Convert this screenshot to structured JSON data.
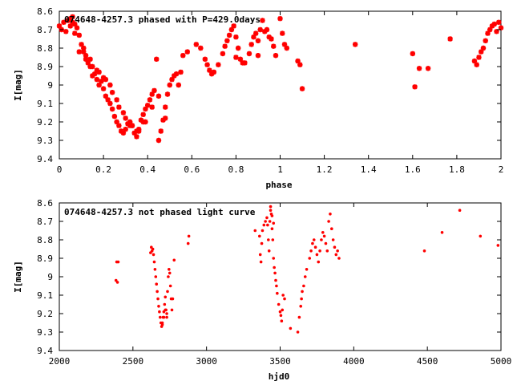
{
  "chart_data": [
    {
      "type": "scatter",
      "title": "074648-4257.3 phased with P=429.0days",
      "xlabel": "phase",
      "ylabel": "I[mag]",
      "xlim": [
        0,
        2
      ],
      "ylim": [
        8.6,
        9.4
      ],
      "y_inverted": true,
      "marker_color": "#ff0000",
      "marker": "star",
      "grid": false,
      "x_ticks": [
        "0",
        "0.2",
        "0.4",
        "0.6",
        "0.8",
        "1",
        "1.2",
        "1.4",
        "1.6",
        "1.8",
        "2"
      ],
      "y_ticks": [
        "8.6",
        "8.7",
        "8.8",
        "8.9",
        "9",
        "9.1",
        "9.2",
        "9.3",
        "9.4"
      ],
      "x": [
        0.0,
        0.01,
        0.02,
        0.03,
        0.04,
        0.05,
        0.06,
        0.07,
        0.08,
        0.09,
        0.1,
        0.11,
        0.12,
        0.13,
        0.14,
        0.15,
        0.16,
        0.17,
        0.18,
        0.19,
        0.2,
        0.21,
        0.22,
        0.23,
        0.24,
        0.25,
        0.26,
        0.27,
        0.28,
        0.29,
        0.3,
        0.31,
        0.32,
        0.33,
        0.34,
        0.35,
        0.36,
        0.37,
        0.38,
        0.39,
        0.4,
        0.41,
        0.42,
        0.43,
        0.44,
        0.45,
        0.46,
        0.47,
        0.48,
        0.49,
        0.5,
        0.51,
        0.52,
        0.53,
        0.54,
        0.55,
        0.56,
        0.58,
        0.62,
        0.64,
        0.66,
        0.67,
        0.68,
        0.69,
        0.7,
        0.72,
        0.74,
        0.75,
        0.76,
        0.77,
        0.78,
        0.79,
        0.8,
        0.81,
        0.82,
        0.84,
        0.86,
        0.87,
        0.88,
        0.89,
        0.9,
        0.91,
        0.92,
        0.93,
        0.94,
        0.95,
        0.96,
        0.97,
        0.98,
        1.0,
        1.01,
        1.02,
        1.03,
        1.08,
        1.09,
        1.1,
        1.34,
        1.6,
        1.61,
        1.63,
        1.67,
        1.77,
        1.88,
        1.89,
        1.9,
        1.91,
        1.92,
        1.93,
        1.94,
        1.95,
        1.96,
        1.97,
        1.98,
        1.99,
        2.0,
        0.06,
        0.09,
        0.12,
        0.15,
        0.18,
        0.21,
        0.24,
        0.27,
        0.3,
        0.33,
        0.36,
        0.39,
        0.42,
        0.45,
        0.48,
        0.8,
        0.83,
        0.9,
        0.05,
        0.07,
        0.11,
        0.14,
        0.17,
        0.2,
        0.23,
        0.26,
        0.29,
        0.32,
        0.35,
        0.38
      ],
      "y": [
        8.68,
        8.7,
        8.66,
        8.71,
        8.65,
        8.64,
        8.63,
        8.67,
        8.69,
        8.73,
        8.78,
        8.8,
        8.84,
        8.88,
        8.9,
        8.95,
        8.94,
        8.97,
        9.0,
        8.98,
        9.02,
        9.06,
        9.08,
        9.1,
        9.13,
        9.17,
        9.2,
        9.22,
        9.25,
        9.26,
        9.24,
        9.21,
        9.2,
        9.22,
        9.26,
        9.28,
        9.24,
        9.19,
        9.16,
        9.13,
        9.11,
        9.08,
        9.05,
        9.03,
        8.86,
        9.3,
        9.25,
        9.19,
        9.12,
        9.05,
        9.0,
        8.97,
        8.95,
        8.94,
        9.0,
        8.93,
        8.84,
        8.82,
        8.78,
        8.8,
        8.86,
        8.89,
        8.92,
        8.94,
        8.93,
        8.89,
        8.83,
        8.79,
        8.76,
        8.73,
        8.7,
        8.68,
        8.74,
        8.8,
        8.86,
        8.88,
        8.83,
        8.78,
        8.74,
        8.72,
        8.76,
        8.7,
        8.65,
        8.71,
        8.7,
        8.74,
        8.75,
        8.79,
        8.84,
        8.64,
        8.72,
        8.78,
        8.8,
        8.87,
        8.89,
        9.02,
        8.78,
        8.83,
        9.01,
        8.91,
        8.91,
        8.75,
        8.87,
        8.89,
        8.85,
        8.82,
        8.8,
        8.76,
        8.72,
        8.7,
        8.68,
        8.67,
        8.71,
        8.66,
        8.69,
        8.66,
        8.82,
        8.86,
        8.9,
        8.93,
        8.97,
        9.04,
        9.12,
        9.18,
        9.22,
        9.25,
        9.2,
        9.12,
        9.06,
        9.18,
        8.85,
        8.88,
        8.84,
        8.68,
        8.72,
        8.82,
        8.86,
        8.92,
        8.96,
        9.0,
        9.08,
        9.15,
        9.22,
        9.25,
        9.2
      ]
    },
    {
      "type": "scatter",
      "title": "074648-4257.3 not phased light curve",
      "xlabel": "hjd0",
      "ylabel": "I[mag]",
      "xlim": [
        2000,
        5000
      ],
      "ylim": [
        8.6,
        9.4
      ],
      "y_inverted": true,
      "marker_color": "#ff0000",
      "marker": "dot",
      "grid": false,
      "x_ticks": [
        "2000",
        "2500",
        "3000",
        "3500",
        "4000",
        "4500",
        "5000"
      ],
      "y_ticks": [
        "8.6",
        "8.7",
        "8.8",
        "8.9",
        "9",
        "9.1",
        "9.2",
        "9.3",
        "9.4"
      ],
      "x": [
        2385,
        2390,
        2395,
        2400,
        2620,
        2625,
        2630,
        2635,
        2640,
        2645,
        2650,
        2655,
        2660,
        2665,
        2670,
        2675,
        2680,
        2685,
        2690,
        2695,
        2700,
        2705,
        2710,
        2715,
        2720,
        2725,
        2730,
        2735,
        2740,
        2745,
        2750,
        2755,
        2760,
        2765,
        2770,
        2780,
        2875,
        2880,
        3330,
        3360,
        3365,
        3370,
        3375,
        3380,
        3390,
        3400,
        3410,
        3415,
        3420,
        3425,
        3430,
        3435,
        3440,
        3445,
        3450,
        3455,
        3460,
        3465,
        3470,
        3475,
        3480,
        3490,
        3500,
        3505,
        3510,
        3515,
        3520,
        3530,
        3570,
        3620,
        3630,
        3640,
        3645,
        3650,
        3660,
        3670,
        3680,
        3700,
        3710,
        3720,
        3730,
        3740,
        3750,
        3760,
        3770,
        3780,
        3790,
        3800,
        3810,
        3820,
        3830,
        3840,
        3850,
        3860,
        3870,
        3880,
        3890,
        3900,
        4480,
        4600,
        4720,
        4860,
        4980,
        3435,
        3445,
        3455,
        2700,
        2710,
        2720,
        2730
      ],
      "y": [
        9.02,
        8.92,
        9.03,
        8.92,
        8.87,
        8.84,
        8.86,
        8.85,
        8.88,
        8.92,
        8.96,
        9.0,
        9.04,
        9.08,
        9.12,
        9.16,
        9.19,
        9.22,
        9.25,
        9.27,
        9.25,
        9.22,
        9.19,
        9.15,
        9.11,
        9.18,
        9.22,
        9.08,
        9.0,
        8.96,
        8.98,
        9.05,
        9.12,
        9.18,
        9.12,
        8.91,
        8.82,
        8.78,
        8.75,
        8.78,
        8.88,
        8.92,
        8.82,
        8.75,
        8.72,
        8.7,
        8.68,
        8.72,
        8.8,
        8.86,
        8.7,
        8.64,
        8.66,
        8.74,
        8.8,
        8.9,
        8.95,
        8.98,
        9.02,
        9.05,
        9.09,
        9.15,
        9.19,
        9.21,
        9.24,
        9.18,
        9.1,
        9.12,
        9.28,
        9.3,
        9.22,
        9.16,
        9.12,
        9.08,
        9.05,
        9.0,
        8.96,
        8.9,
        8.86,
        8.82,
        8.8,
        8.84,
        8.88,
        8.92,
        8.86,
        8.8,
        8.76,
        8.78,
        8.82,
        8.86,
        8.7,
        8.66,
        8.74,
        8.8,
        8.84,
        8.88,
        8.86,
        8.9,
        8.86,
        8.76,
        8.64,
        8.78,
        8.83,
        8.62,
        8.67,
        8.71,
        9.26,
        9.22,
        9.18,
        9.2
      ]
    }
  ]
}
